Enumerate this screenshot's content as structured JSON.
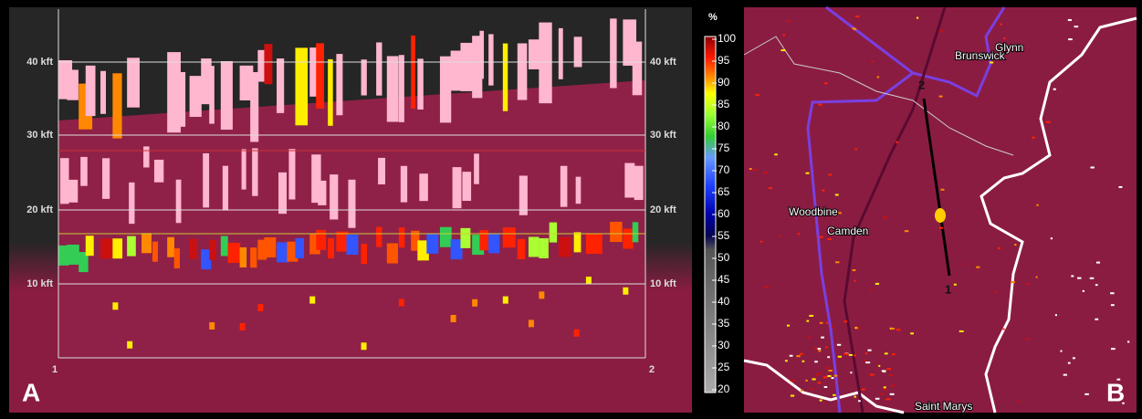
{
  "panel_a": {
    "letter": "A",
    "start_label": "1",
    "end_label": "2",
    "left_axis": [
      "40 kft",
      "30 kft",
      "20 kft",
      "10 kft"
    ],
    "right_axis": [
      "40 kft",
      "30 kft",
      "20 kft",
      "10 kft"
    ]
  },
  "colorbar": {
    "unit": "%",
    "ticks": [
      100,
      95,
      90,
      85,
      80,
      75,
      70,
      65,
      60,
      55,
      50,
      45,
      40,
      35,
      30,
      25,
      20
    ]
  },
  "panel_b": {
    "letter": "B",
    "places": [
      "Brunswick",
      "Glynn",
      "Woodbine",
      "Camden",
      "Saint Marys"
    ],
    "point_2": "2",
    "point_1": "1"
  }
}
